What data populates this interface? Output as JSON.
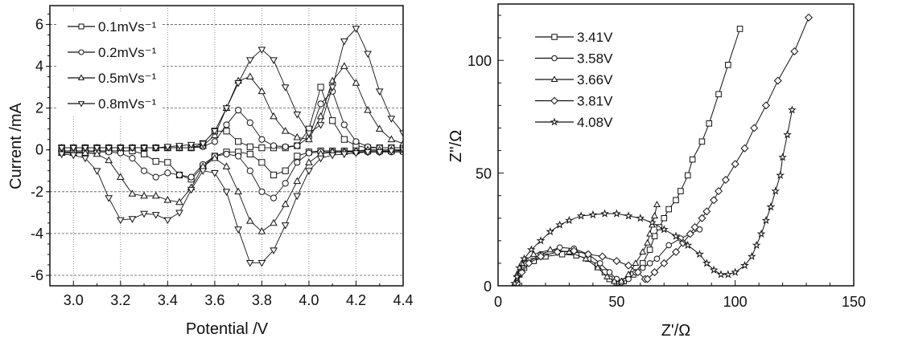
{
  "chart_data": [
    {
      "type": "scatter",
      "xlabel": "Potential /V",
      "ylabel": "Current /mA",
      "xlim": [
        2.9,
        4.4
      ],
      "ylim": [
        -6.5,
        6.9
      ],
      "xticks": [
        3.0,
        3.2,
        3.4,
        3.6,
        3.8,
        4.0,
        4.2,
        4.4
      ],
      "xtick_labels": [
        "3.0",
        "3.2",
        "3.4",
        "3.6",
        "3.8",
        "4.0",
        "4.2",
        "4.4"
      ],
      "yticks": [
        -6,
        -4,
        -2,
        0,
        2,
        4,
        6
      ],
      "ytick_labels": [
        "-6",
        "-4",
        "-2",
        "0",
        "2",
        "4",
        "6"
      ],
      "grid": "dotted",
      "legend_position": "top-left",
      "x": [
        2.95,
        3.0,
        3.05,
        3.1,
        3.15,
        3.2,
        3.25,
        3.3,
        3.35,
        3.4,
        3.45,
        3.5,
        3.55,
        3.6,
        3.65,
        3.7,
        3.75,
        3.8,
        3.85,
        3.9,
        3.95,
        4.0,
        4.05,
        4.1,
        4.15,
        4.2,
        4.25,
        4.3,
        4.35,
        4.4,
        4.45
      ],
      "series": [
        {
          "name": "0.1mVs⁻¹",
          "marker": "square",
          "anodic": [
            0.1,
            0.1,
            0.1,
            0.1,
            0.1,
            0.1,
            0.1,
            0.1,
            0.1,
            0.1,
            0.1,
            0.1,
            0.3,
            0.9,
            0.9,
            0.4,
            0.15,
            0.1,
            0.1,
            0.1,
            0.2,
            1.0,
            3.0,
            1.4,
            0.5,
            0.2,
            0.1,
            0.1,
            0.1,
            0.1,
            0.1
          ],
          "cathodic": [
            -0.05,
            -0.05,
            -0.05,
            -0.05,
            -0.05,
            -0.05,
            -0.05,
            -0.2,
            -0.55,
            -0.6,
            -1.2,
            -1.4,
            -0.8,
            -0.3,
            -0.1,
            -0.1,
            -0.2,
            -0.6,
            -1.2,
            -1.0,
            -0.3,
            -0.1,
            -0.05,
            -0.05,
            -0.05,
            -0.05,
            -0.05,
            -0.05,
            -0.05,
            -0.05,
            -0.05
          ]
        },
        {
          "name": "0.2mVs⁻¹",
          "marker": "circle",
          "anodic": [
            0.1,
            0.1,
            0.1,
            0.1,
            0.1,
            0.1,
            0.1,
            0.1,
            0.1,
            0.1,
            0.1,
            0.1,
            0.15,
            0.4,
            1.2,
            1.9,
            1.3,
            0.5,
            0.2,
            0.15,
            0.2,
            0.6,
            2.2,
            2.8,
            1.2,
            0.4,
            0.15,
            0.1,
            0.1,
            0.1,
            0.1
          ],
          "cathodic": [
            -0.1,
            -0.1,
            -0.1,
            -0.1,
            -0.1,
            -0.15,
            -0.4,
            -1.0,
            -1.3,
            -1.1,
            -1.2,
            -1.3,
            -0.7,
            -0.3,
            -0.2,
            -0.3,
            -1.0,
            -2.0,
            -2.3,
            -1.6,
            -0.6,
            -0.15,
            -0.1,
            -0.1,
            -0.1,
            -0.1,
            -0.1,
            -0.1,
            -0.1,
            -0.1,
            -0.1
          ]
        },
        {
          "name": "0.5mVs⁻¹",
          "marker": "triangle-up",
          "anodic": [
            0.1,
            0.1,
            0.1,
            0.1,
            0.1,
            0.1,
            0.1,
            0.1,
            0.1,
            0.1,
            0.1,
            0.1,
            0.2,
            0.7,
            2.0,
            3.3,
            3.5,
            2.8,
            1.6,
            0.9,
            0.6,
            0.5,
            1.6,
            3.3,
            4.0,
            3.2,
            1.9,
            1.0,
            0.5,
            0.3,
            0.3
          ],
          "cathodic": [
            -0.15,
            -0.15,
            -0.15,
            -0.2,
            -0.5,
            -1.3,
            -2.1,
            -2.2,
            -2.2,
            -2.4,
            -2.5,
            -1.8,
            -0.8,
            -0.4,
            -0.8,
            -2.0,
            -3.4,
            -3.9,
            -3.5,
            -2.6,
            -1.5,
            -0.6,
            -0.2,
            -0.1,
            -0.1,
            -0.05,
            0,
            0,
            0,
            0,
            0.05
          ]
        },
        {
          "name": "0.8mVs⁻¹",
          "marker": "triangle-down",
          "anodic": [
            0.1,
            0.1,
            0.1,
            0.1,
            0.1,
            0.1,
            0.1,
            0.1,
            0.1,
            0.15,
            0.2,
            0.25,
            0.3,
            0.9,
            2.0,
            3.2,
            4.3,
            4.8,
            4.3,
            3.0,
            1.7,
            0.8,
            1.2,
            3.0,
            5.2,
            5.8,
            4.6,
            2.8,
            1.5,
            0.8,
            0.5
          ],
          "cathodic": [
            -0.2,
            -0.25,
            -0.4,
            -1.0,
            -2.3,
            -3.35,
            -3.3,
            -3.05,
            -3.1,
            -3.35,
            -3.0,
            -1.9,
            -1.0,
            -1.1,
            -2.0,
            -3.8,
            -5.4,
            -5.4,
            -4.8,
            -3.6,
            -2.2,
            -1.0,
            -0.4,
            -0.25,
            -0.2,
            -0.15,
            -0.1,
            -0.1,
            -0.05,
            0,
            0.1
          ]
        }
      ]
    },
    {
      "type": "scatter",
      "xlabel": "Z'/Ω",
      "ylabel": "Z''/Ω",
      "xlim": [
        0,
        150
      ],
      "ylim": [
        0,
        125
      ],
      "xticks": [
        0,
        50,
        100,
        150
      ],
      "xtick_labels": [
        "0",
        "50",
        "100",
        "150"
      ],
      "yticks": [
        0,
        50,
        100
      ],
      "ytick_labels": [
        "0",
        "50",
        "100"
      ],
      "grid": "off",
      "legend_position": "top-left",
      "series": [
        {
          "name": "3.41V",
          "marker": "square",
          "points": [
            [
              8,
              1
            ],
            [
              9,
              5
            ],
            [
              11,
              8
            ],
            [
              15,
              11
            ],
            [
              20,
              13
            ],
            [
              27,
              14
            ],
            [
              33,
              13.5
            ],
            [
              38,
              12
            ],
            [
              42,
              9
            ],
            [
              45,
              6
            ],
            [
              47,
              3
            ],
            [
              50,
              1.5
            ],
            [
              53,
              2
            ],
            [
              57,
              5
            ],
            [
              61,
              10
            ],
            [
              64,
              16
            ],
            [
              66,
              22
            ],
            [
              68,
              26
            ],
            [
              70,
              30
            ],
            [
              72,
              34
            ],
            [
              75,
              38
            ],
            [
              77,
              42
            ],
            [
              80,
              49
            ],
            [
              82,
              56
            ],
            [
              86,
              64
            ],
            [
              89,
              72
            ],
            [
              93,
              85
            ],
            [
              97,
              98
            ],
            [
              102,
              114
            ]
          ]
        },
        {
          "name": "3.58V",
          "marker": "circle",
          "points": [
            [
              8,
              1
            ],
            [
              9,
              5
            ],
            [
              12,
              10
            ],
            [
              18,
              14
            ],
            [
              26,
              17
            ],
            [
              32,
              16.5
            ],
            [
              38,
              14
            ],
            [
              43,
              10
            ],
            [
              47,
              6
            ],
            [
              50,
              3
            ],
            [
              52,
              1.5
            ],
            [
              55,
              3
            ],
            [
              58,
              6
            ],
            [
              61,
              8
            ],
            [
              64,
              10
            ],
            [
              67,
              12
            ],
            [
              72,
              18
            ],
            [
              77,
              21
            ],
            [
              85,
              25
            ]
          ]
        },
        {
          "name": "3.66V",
          "marker": "triangle-up",
          "points": [
            [
              7,
              1
            ],
            [
              8,
              5
            ],
            [
              10,
              10
            ],
            [
              15,
              14
            ],
            [
              22,
              16
            ],
            [
              30,
              15
            ],
            [
              37,
              12
            ],
            [
              42,
              8
            ],
            [
              46,
              4
            ],
            [
              49,
              2
            ],
            [
              52,
              2
            ],
            [
              55,
              5
            ],
            [
              58,
              10
            ],
            [
              61,
              15
            ],
            [
              63,
              19
            ],
            [
              64,
              23
            ],
            [
              65,
              27
            ],
            [
              66,
              31
            ],
            [
              67,
              36
            ]
          ]
        },
        {
          "name": "3.81V",
          "marker": "diamond",
          "points": [
            [
              8,
              1
            ],
            [
              10,
              6
            ],
            [
              13,
              10
            ],
            [
              18,
              13
            ],
            [
              25,
              15
            ],
            [
              32,
              15.5
            ],
            [
              38,
              14
            ],
            [
              44,
              13
            ],
            [
              50,
              11
            ],
            [
              55,
              9
            ],
            [
              59,
              6
            ],
            [
              62,
              3
            ],
            [
              63,
              3
            ],
            [
              66,
              6
            ],
            [
              70,
              10
            ],
            [
              75,
              15
            ],
            [
              78,
              19
            ],
            [
              81,
              23
            ],
            [
              83,
              26
            ],
            [
              86,
              30
            ],
            [
              88,
              33
            ],
            [
              91,
              38
            ],
            [
              93,
              42
            ],
            [
              96,
              47
            ],
            [
              100,
              54
            ],
            [
              104,
              61
            ],
            [
              108,
              70
            ],
            [
              113,
              80
            ],
            [
              118,
              91
            ],
            [
              125,
              104
            ],
            [
              131,
              119
            ]
          ]
        },
        {
          "name": "4.08V",
          "marker": "star",
          "points": [
            [
              7,
              1
            ],
            [
              8,
              4
            ],
            [
              9,
              8
            ],
            [
              11,
              12
            ],
            [
              14,
              16
            ],
            [
              18,
              20
            ],
            [
              22,
              24
            ],
            [
              26,
              27
            ],
            [
              30,
              29
            ],
            [
              35,
              31
            ],
            [
              40,
              31.5
            ],
            [
              45,
              32
            ],
            [
              50,
              32
            ],
            [
              55,
              31
            ],
            [
              60,
              30
            ],
            [
              65,
              28
            ],
            [
              70,
              25
            ],
            [
              75,
              22
            ],
            [
              80,
              18
            ],
            [
              85,
              14
            ],
            [
              88,
              10
            ],
            [
              91,
              7
            ],
            [
              94,
              5
            ],
            [
              97,
              5
            ],
            [
              100,
              6
            ],
            [
              104,
              9
            ],
            [
              107,
              13
            ],
            [
              109,
              18
            ],
            [
              111,
              23
            ],
            [
              113,
              29
            ],
            [
              115,
              35
            ],
            [
              117,
              42
            ],
            [
              119,
              49
            ],
            [
              120,
              57
            ],
            [
              122,
              67
            ],
            [
              124,
              78
            ]
          ]
        }
      ]
    }
  ],
  "colors": {
    "ink": "#111111",
    "grid": "#666666",
    "background": "#ffffff"
  }
}
